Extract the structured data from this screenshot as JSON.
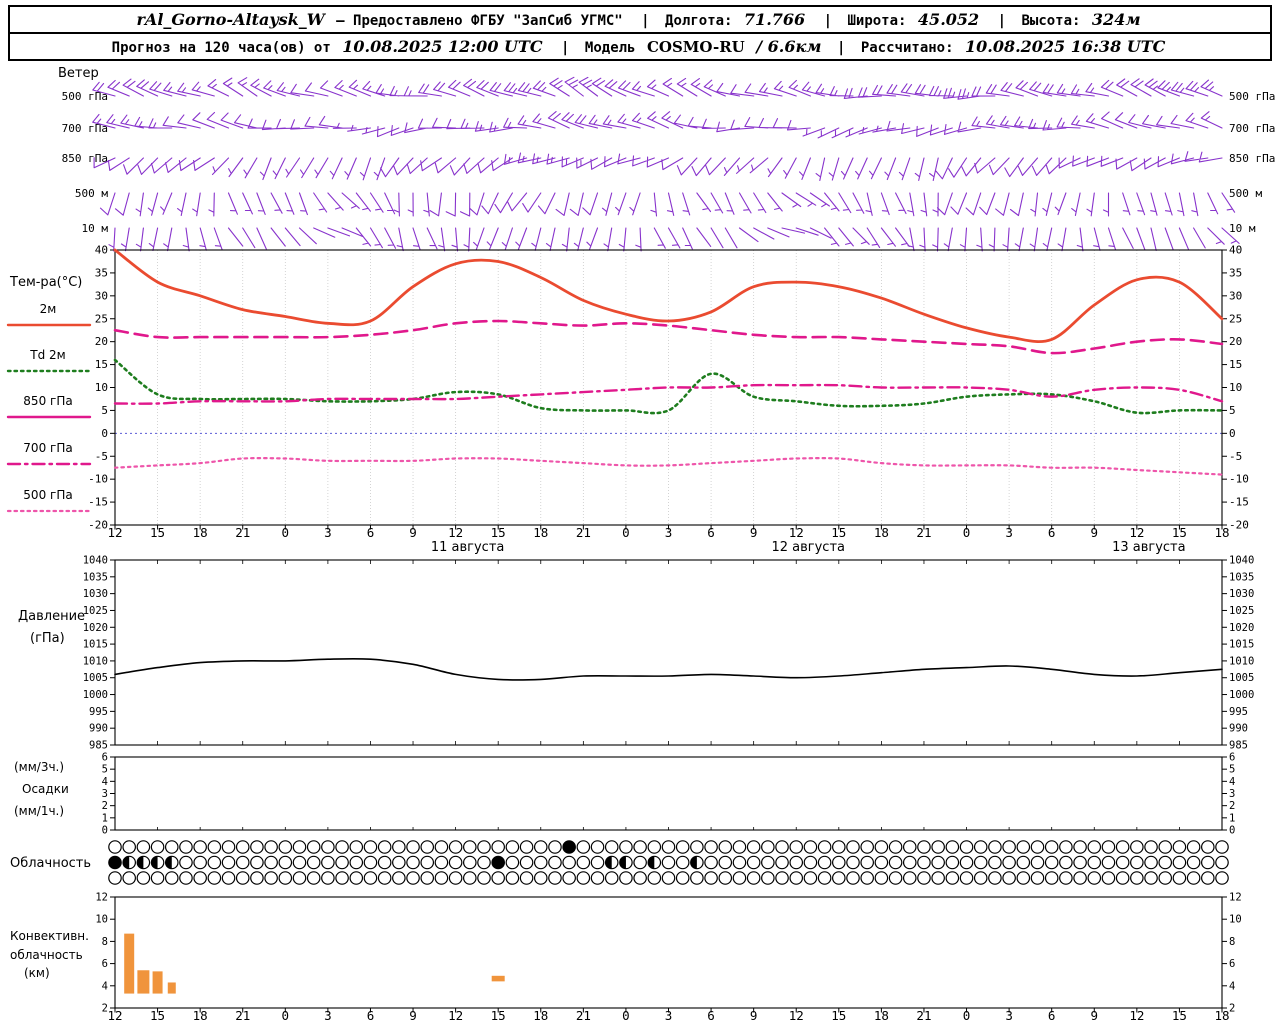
{
  "header": {
    "station": "rAl_Gorno-Altaysk_W",
    "provider": "— Предоставлено ФГБУ \"ЗапСиб УГМС\"",
    "sep": "|",
    "lon_label": "Долгота:",
    "lon_value": "71.766",
    "lat_label": "Широта:",
    "lat_value": "45.052",
    "alt_label": "Высота:",
    "alt_value": "324м",
    "forecast_label": "Прогноз на 120 часа(ов) от",
    "forecast_time": "10.08.2025 12:00 UTC",
    "model_label": "Модель",
    "model_name": "COSMO-RU",
    "model_res": "/ 6.6км",
    "calc_label": "Рассчитано:",
    "calc_time": "10.08.2025 16:38 UTC"
  },
  "time_axis": {
    "tick_labels": [
      "12",
      "15",
      "18",
      "21",
      "0",
      "3",
      "6",
      "9",
      "12",
      "15",
      "18",
      "21",
      "0",
      "3",
      "6",
      "9",
      "12",
      "15",
      "18",
      "21",
      "0",
      "3",
      "6",
      "9",
      "12",
      "15",
      "18"
    ],
    "step_hours": 3,
    "total_hours": 78,
    "date_labels": [
      {
        "text": "11 августа",
        "t": 24
      },
      {
        "text": "12 августа",
        "t": 48
      },
      {
        "text": "13 августа",
        "t": 72
      }
    ]
  },
  "chart_data": [
    {
      "id": "wind",
      "type": "wind-barbs",
      "title": "Ветер",
      "color": "#8833cc",
      "rows": [
        {
          "label": "500 гПа",
          "dirs": [
            285,
            288,
            292,
            295,
            292,
            288,
            283,
            280,
            283,
            288,
            293,
            298,
            300,
            296,
            292,
            287,
            282,
            278,
            274,
            270,
            272,
            276,
            281,
            286,
            290,
            294,
            298
          ],
          "spds": [
            20,
            20,
            15,
            15,
            15,
            10,
            15,
            15,
            20,
            20,
            25,
            25,
            20,
            15,
            15,
            10,
            15,
            15,
            20,
            20,
            25,
            20,
            20,
            15,
            20,
            25,
            25
          ]
        },
        {
          "label": "700 гПа",
          "dirs": [
            275,
            280,
            285,
            282,
            276,
            268,
            262,
            258,
            262,
            270,
            278,
            286,
            290,
            286,
            278,
            270,
            262,
            254,
            250,
            254,
            262,
            270,
            275,
            280,
            284,
            288,
            288
          ],
          "spds": [
            15,
            15,
            10,
            10,
            10,
            10,
            5,
            10,
            10,
            15,
            15,
            20,
            15,
            15,
            10,
            10,
            10,
            5,
            5,
            10,
            10,
            15,
            15,
            15,
            10,
            10,
            15
          ]
        },
        {
          "label": "850 гПа",
          "dirs": [
            240,
            234,
            228,
            220,
            210,
            202,
            208,
            218,
            228,
            238,
            248,
            254,
            248,
            240,
            230,
            220,
            210,
            202,
            196,
            202,
            210,
            220,
            230,
            240,
            246,
            250,
            252
          ],
          "spds": [
            10,
            10,
            10,
            5,
            5,
            5,
            5,
            10,
            10,
            10,
            15,
            15,
            10,
            10,
            10,
            5,
            5,
            5,
            5,
            5,
            10,
            10,
            10,
            10,
            10,
            10,
            10
          ]
        },
        {
          "label": "500 м",
          "dirs": [
            205,
            195,
            182,
            165,
            150,
            140,
            152,
            170,
            190,
            202,
            210,
            202,
            190,
            172,
            152,
            140,
            132,
            142,
            160,
            180,
            192,
            202,
            192,
            182,
            170,
            160,
            150
          ],
          "spds": [
            10,
            8,
            5,
            5,
            5,
            5,
            5,
            8,
            10,
            10,
            10,
            10,
            5,
            5,
            5,
            5,
            5,
            5,
            5,
            8,
            10,
            10,
            8,
            5,
            5,
            5,
            5
          ]
        },
        {
          "label": "10 м",
          "dirs": [
            192,
            182,
            170,
            150,
            132,
            120,
            142,
            162,
            182,
            192,
            202,
            192,
            180,
            160,
            140,
            122,
            112,
            132,
            152,
            172,
            182,
            192,
            182,
            172,
            160,
            150,
            142
          ],
          "spds": [
            5,
            5,
            5,
            2,
            2,
            2,
            5,
            5,
            5,
            8,
            8,
            5,
            5,
            5,
            2,
            2,
            2,
            5,
            5,
            5,
            8,
            5,
            5,
            5,
            2,
            2,
            5
          ]
        }
      ]
    },
    {
      "id": "temperature",
      "type": "line",
      "title": "Тем-ра(°C)",
      "ylim": [
        -20,
        40
      ],
      "yticks": [
        40,
        35,
        30,
        25,
        20,
        15,
        10,
        5,
        0,
        -5,
        -10,
        -15,
        -20
      ],
      "zero_line_color": "#5b5bd6",
      "series": [
        {
          "name": "2м",
          "color": "#ea4b30",
          "style": "solid",
          "values": [
            40,
            33,
            30,
            27,
            25.5,
            24,
            24.5,
            32,
            37,
            37.5,
            34,
            29,
            26,
            24.5,
            26.5,
            32,
            33,
            32,
            29.5,
            26,
            23,
            21,
            20.5,
            28,
            33.5,
            33,
            25
          ]
        },
        {
          "name": "Td 2м",
          "color": "#1e7d1e",
          "style": "dotted",
          "values": [
            16,
            8.5,
            7.5,
            7.5,
            7.5,
            7,
            7,
            7.5,
            9,
            8.5,
            5.5,
            5,
            5,
            5,
            13,
            8,
            7,
            6,
            6,
            6.5,
            8,
            8.5,
            8.5,
            7,
            4.5,
            5,
            5
          ]
        },
        {
          "name": "850 гПа",
          "color": "#e0188c",
          "style": "dashed",
          "legend_style": "solid",
          "values": [
            22.5,
            21,
            21,
            21,
            21,
            21,
            21.5,
            22.5,
            24,
            24.5,
            24,
            23.5,
            24,
            23.5,
            22.5,
            21.5,
            21,
            21,
            20.5,
            20,
            19.5,
            19,
            17.5,
            18.5,
            20,
            20.5,
            19.5
          ]
        },
        {
          "name": "700 гПа",
          "color": "#e0188c",
          "style": "dashdot",
          "values": [
            6.5,
            6.5,
            7,
            7,
            7,
            7.5,
            7.5,
            7.5,
            7.5,
            8,
            8.5,
            9,
            9.5,
            10,
            10,
            10.5,
            10.5,
            10.5,
            10,
            10,
            10,
            9.5,
            8,
            9.5,
            10,
            9.5,
            7
          ]
        },
        {
          "name": "500 гПа",
          "color": "#ee55aa",
          "style": "dotted-small",
          "values": [
            -7.5,
            -7,
            -6.5,
            -5.5,
            -5.5,
            -6,
            -6,
            -6,
            -5.5,
            -5.5,
            -6,
            -6.5,
            -7,
            -7,
            -6.5,
            -6,
            -5.5,
            -5.5,
            -6.5,
            -7,
            -7,
            -7,
            -7.5,
            -7.5,
            -8,
            -8.5,
            -9
          ]
        }
      ]
    },
    {
      "id": "pressure",
      "type": "line",
      "ylabels": [
        "Давление",
        "(гПа)"
      ],
      "ylim": [
        985,
        1040
      ],
      "yticks": [
        1040,
        1035,
        1030,
        1025,
        1020,
        1015,
        1010,
        1005,
        1000,
        995,
        990,
        985
      ],
      "series": [
        {
          "name": "давление",
          "color": "#000000",
          "style": "solid",
          "values": [
            1006,
            1008,
            1009.5,
            1010,
            1010,
            1010.5,
            1010.5,
            1009,
            1006,
            1004.5,
            1004.5,
            1005.5,
            1005.5,
            1005.5,
            1006,
            1005.5,
            1005,
            1005.5,
            1006.5,
            1007.5,
            1008,
            1008.5,
            1007.5,
            1006,
            1005.5,
            1006.5,
            1007.5
          ]
        }
      ]
    },
    {
      "id": "precipitation",
      "type": "bar",
      "ylabels": [
        "(мм/3ч.)",
        "Осадки",
        "(мм/1ч.)"
      ],
      "ylim": [
        0,
        6
      ],
      "yticks": [
        6,
        5,
        4,
        3,
        2,
        1,
        0
      ],
      "color": "#2e7d32",
      "bars": []
    },
    {
      "id": "cloud",
      "type": "symbol-rows",
      "title": "Облачность",
      "length": 79,
      "rows": [
        {
          "default": "O",
          "marks": {
            "32": "F"
          }
        },
        {
          "default": "O",
          "marks": {
            "0": "F",
            "1": "H",
            "2": "H",
            "3": "H",
            "4": "H",
            "27": "F",
            "35": "H",
            "36": "H",
            "38": "H",
            "41": "H"
          }
        },
        {
          "default": "O",
          "marks": {}
        }
      ]
    },
    {
      "id": "convective",
      "type": "bar",
      "ylabels": [
        "Конвективн.",
        "облачность",
        "(км)"
      ],
      "ylim": [
        2,
        12
      ],
      "yticks": [
        12,
        10,
        8,
        6,
        4,
        2
      ],
      "color": "#f0943c",
      "bars": [
        {
          "t": 1,
          "v0": 3.3,
          "v1": 8.7,
          "w": 10
        },
        {
          "t": 2,
          "v0": 3.3,
          "v1": 5.4,
          "w": 12
        },
        {
          "t": 3,
          "v0": 3.3,
          "v1": 5.3,
          "w": 10
        },
        {
          "t": 4,
          "v0": 3.3,
          "v1": 4.3,
          "w": 8
        },
        {
          "t": 27,
          "v0": 4.4,
          "v1": 4.9,
          "w": 13
        }
      ]
    }
  ]
}
